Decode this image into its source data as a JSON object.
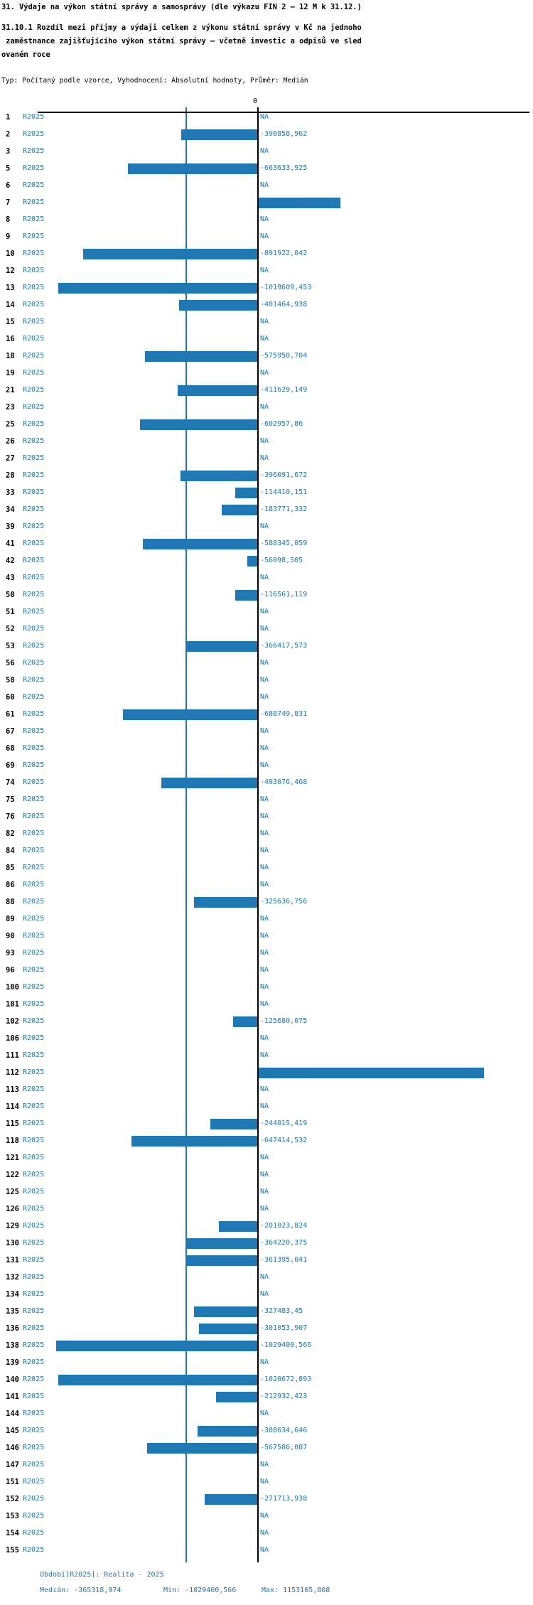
{
  "header": {
    "title": "31. Výdaje na výkon státní správy a samosprávy (dle výkazu FIN 2 – 12 M k 31.12.)",
    "subtitle_lines": [
      "31.10.1 Rozdíl mezi příjmy a výdaji celkem z výkonu státní správy v Kč na jednoho",
      " zaměstnance zajišťujícího výkon státní správy – včetně investic a odpisů ve sled",
      "ovaném roce"
    ],
    "meta_line": "Typ: Počítaný podle vzorce, Vyhodnocení: Absolutní hodnoty, Průměr: Medián"
  },
  "axis": {
    "zero_label": "0"
  },
  "footer": {
    "period_line": "Období[R2025]: Realita - 2025",
    "median_label": "Medián: -365318,974",
    "min_label": "Min: -1029400,566",
    "max_label": "Max: 1153105,808"
  },
  "chart_data": {
    "type": "bar",
    "orientation": "horizontal",
    "title": "31.10.1 Rozdíl mezi příjmy a výdaji celkem z výkonu státní správy v Kč na jednoho zaměstnance zajišťujícího výkon státní správy – včetně investic a odpisů ve sledovaném roce",
    "series_label": "R2025",
    "period": "Realita - 2025",
    "bar_color": "#1f77b4",
    "zero_line_color": "#000000",
    "median_line_color": "#1f77b4",
    "median": -365318.974,
    "min": -1029400.566,
    "max": 1153105.808,
    "na_text": "NA",
    "rows": [
      {
        "id": "1",
        "value": null,
        "label": "NA"
      },
      {
        "id": "2",
        "value": -390858.962,
        "label": "-390858,962"
      },
      {
        "id": "3",
        "value": null,
        "label": "NA"
      },
      {
        "id": "5",
        "value": -663633.925,
        "label": "-663633,925"
      },
      {
        "id": "6",
        "value": null,
        "label": "NA"
      },
      {
        "id": "7",
        "value": 421523.541,
        "label": "421523,541"
      },
      {
        "id": "8",
        "value": null,
        "label": "NA"
      },
      {
        "id": "9",
        "value": null,
        "label": "NA"
      },
      {
        "id": "10",
        "value": -891922.042,
        "label": "-891922,042"
      },
      {
        "id": "12",
        "value": null,
        "label": "NA"
      },
      {
        "id": "13",
        "value": -1019609.453,
        "label": "-1019609,453"
      },
      {
        "id": "14",
        "value": -401464.938,
        "label": "-401464,938"
      },
      {
        "id": "15",
        "value": null,
        "label": "NA"
      },
      {
        "id": "16",
        "value": null,
        "label": "NA"
      },
      {
        "id": "18",
        "value": -575950.704,
        "label": "-575950,704"
      },
      {
        "id": "19",
        "value": null,
        "label": "NA"
      },
      {
        "id": "21",
        "value": -411629.149,
        "label": "-411629,149"
      },
      {
        "id": "23",
        "value": null,
        "label": "NA"
      },
      {
        "id": "25",
        "value": -602957.86,
        "label": "-602957,86"
      },
      {
        "id": "26",
        "value": null,
        "label": "NA"
      },
      {
        "id": "27",
        "value": null,
        "label": "NA"
      },
      {
        "id": "28",
        "value": -396091.672,
        "label": "-396091,672"
      },
      {
        "id": "33",
        "value": -114410.151,
        "label": "-114410,151"
      },
      {
        "id": "34",
        "value": -183771.332,
        "label": "-183771,332"
      },
      {
        "id": "39",
        "value": null,
        "label": "NA"
      },
      {
        "id": "41",
        "value": -588345.059,
        "label": "-588345,059"
      },
      {
        "id": "42",
        "value": -56098.505,
        "label": "-56098,505"
      },
      {
        "id": "43",
        "value": null,
        "label": "NA"
      },
      {
        "id": "50",
        "value": -116561.119,
        "label": "-116561,119"
      },
      {
        "id": "51",
        "value": null,
        "label": "NA"
      },
      {
        "id": "52",
        "value": null,
        "label": "NA"
      },
      {
        "id": "53",
        "value": -366417.573,
        "label": "-366417,573"
      },
      {
        "id": "56",
        "value": null,
        "label": "NA"
      },
      {
        "id": "58",
        "value": null,
        "label": "NA"
      },
      {
        "id": "60",
        "value": null,
        "label": "NA"
      },
      {
        "id": "61",
        "value": -688749.831,
        "label": "-688749,831"
      },
      {
        "id": "67",
        "value": null,
        "label": "NA"
      },
      {
        "id": "68",
        "value": null,
        "label": "NA"
      },
      {
        "id": "69",
        "value": null,
        "label": "NA"
      },
      {
        "id": "74",
        "value": -493076.468,
        "label": "-493076,468"
      },
      {
        "id": "75",
        "value": null,
        "label": "NA"
      },
      {
        "id": "76",
        "value": null,
        "label": "NA"
      },
      {
        "id": "82",
        "value": null,
        "label": "NA"
      },
      {
        "id": "84",
        "value": null,
        "label": "NA"
      },
      {
        "id": "85",
        "value": null,
        "label": "NA"
      },
      {
        "id": "86",
        "value": null,
        "label": "NA"
      },
      {
        "id": "88",
        "value": -325636.756,
        "label": "-325636,756"
      },
      {
        "id": "89",
        "value": null,
        "label": "NA"
      },
      {
        "id": "90",
        "value": null,
        "label": "NA"
      },
      {
        "id": "93",
        "value": null,
        "label": "NA"
      },
      {
        "id": "96",
        "value": null,
        "label": "NA"
      },
      {
        "id": "100",
        "value": null,
        "label": "NA"
      },
      {
        "id": "101",
        "value": null,
        "label": "NA"
      },
      {
        "id": "102",
        "value": -125680.075,
        "label": "-125680,075"
      },
      {
        "id": "106",
        "value": null,
        "label": "NA"
      },
      {
        "id": "111",
        "value": null,
        "label": "NA"
      },
      {
        "id": "112",
        "value": 1153105.808,
        "label": "1153105,808"
      },
      {
        "id": "113",
        "value": null,
        "label": "NA"
      },
      {
        "id": "114",
        "value": null,
        "label": "NA"
      },
      {
        "id": "115",
        "value": -244815.419,
        "label": "-244815,419"
      },
      {
        "id": "118",
        "value": -647414.532,
        "label": "-647414,532"
      },
      {
        "id": "121",
        "value": null,
        "label": "NA"
      },
      {
        "id": "122",
        "value": null,
        "label": "NA"
      },
      {
        "id": "125",
        "value": null,
        "label": "NA"
      },
      {
        "id": "126",
        "value": null,
        "label": "NA"
      },
      {
        "id": "129",
        "value": -201023.824,
        "label": "-201023,824"
      },
      {
        "id": "130",
        "value": -364220.375,
        "label": "-364220,375"
      },
      {
        "id": "131",
        "value": -361395.041,
        "label": "-361395,041"
      },
      {
        "id": "132",
        "value": null,
        "label": "NA"
      },
      {
        "id": "134",
        "value": null,
        "label": "NA"
      },
      {
        "id": "135",
        "value": -327483.45,
        "label": "-327483,45"
      },
      {
        "id": "136",
        "value": -301053.907,
        "label": "-301053,907"
      },
      {
        "id": "138",
        "value": -1029400.566,
        "label": "-1029400,566"
      },
      {
        "id": "139",
        "value": null,
        "label": "NA"
      },
      {
        "id": "140",
        "value": -1020672.893,
        "label": "-1020672,893"
      },
      {
        "id": "141",
        "value": -212932.423,
        "label": "-212932,423"
      },
      {
        "id": "144",
        "value": null,
        "label": "NA"
      },
      {
        "id": "145",
        "value": -308634.646,
        "label": "-308634,646"
      },
      {
        "id": "146",
        "value": -567586.087,
        "label": "-567586,087"
      },
      {
        "id": "147",
        "value": null,
        "label": "NA"
      },
      {
        "id": "151",
        "value": null,
        "label": "NA"
      },
      {
        "id": "152",
        "value": -271713.938,
        "label": "-271713,938"
      },
      {
        "id": "153",
        "value": null,
        "label": "NA"
      },
      {
        "id": "154",
        "value": null,
        "label": "NA"
      },
      {
        "id": "155",
        "value": null,
        "label": "NA"
      }
    ]
  }
}
